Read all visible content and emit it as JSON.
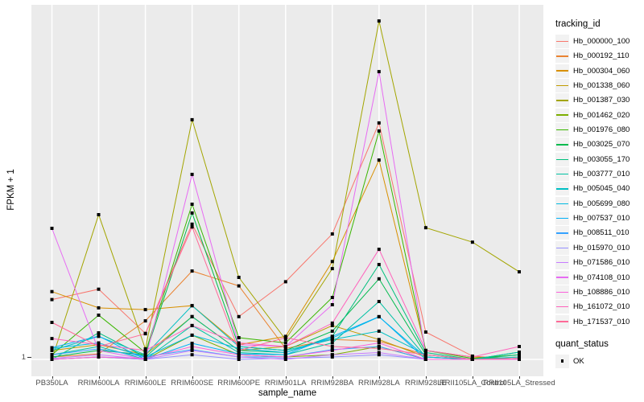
{
  "figure": {
    "background": "#FFFFFF",
    "panel_background": "#EBEBEB",
    "grid_color": "#FFFFFF",
    "axis_text_color": "#4D4D4D",
    "point_color": "#000000"
  },
  "axes": {
    "x_title": "sample_name",
    "y_title": "FPKM + 1",
    "y_tick_label": "1"
  },
  "legend": {
    "tracking_title": "tracking_id",
    "quant_title": "quant_status",
    "quant_items": [
      {
        "label": "OK"
      }
    ]
  },
  "chart_data": {
    "type": "line",
    "title": "",
    "xlabel": "sample_name",
    "ylabel": "FPKM + 1",
    "y_scale": "log10",
    "y_ticks": [
      {
        "value": 1,
        "label": "1"
      }
    ],
    "ylim_log10": [
      -0.05,
      3.15
    ],
    "grid": "vertical major gridlines per sample, horizontal gridline at y=1",
    "legend_position": "right",
    "marker": "filled-square",
    "quant_status": "OK",
    "categories": [
      "PB350LA",
      "RRIM600LA",
      "RRIM600LE",
      "RRIM600SE",
      "RRIM600PE",
      "RRIM901LA",
      "RRIM928BA",
      "RRIM928LA",
      "RRIM928LE",
      "RRII105LA_Control",
      "RRII105LA_Stressed"
    ],
    "series": [
      {
        "name": "Hb_000000_100",
        "color": "#F8766D",
        "values": [
          3.4,
          4.2,
          1.7,
          15.9,
          2.4,
          4.9,
          13.0,
          126,
          1.75,
          1.07,
          1.0
        ]
      },
      {
        "name": "Hb_000192_110",
        "color": "#EA8331",
        "values": [
          1.05,
          1.12,
          2.2,
          6.1,
          4.5,
          1.25,
          1.5,
          1.45,
          1.1,
          1.0,
          1.05
        ]
      },
      {
        "name": "Hb_000304_060",
        "color": "#D89000",
        "values": [
          4.0,
          2.87,
          2.77,
          3.0,
          1.35,
          1.6,
          7.4,
          59,
          1.2,
          1.05,
          1.0
        ]
      },
      {
        "name": "Hb_001338_060",
        "color": "#C09B00",
        "values": [
          1.2,
          1.35,
          1.1,
          2.4,
          1.2,
          1.3,
          2.0,
          1.5,
          1.05,
          1.0,
          1.0
        ]
      },
      {
        "name": "Hb_001387_030",
        "color": "#A3A500",
        "values": [
          1.0,
          19.3,
          1.24,
          134.6,
          5.35,
          1.5,
          6.4,
          1015,
          14.8,
          11.0,
          6.0
        ]
      },
      {
        "name": "Hb_001462_020",
        "color": "#7CAE00",
        "values": [
          1.0,
          1.05,
          1.0,
          1.64,
          1.1,
          1.05,
          1.1,
          1.3,
          1.0,
          1.0,
          1.02
        ]
      },
      {
        "name": "Hb_001976_080",
        "color": "#39B600",
        "values": [
          1.1,
          2.47,
          1.15,
          23.9,
          1.56,
          1.4,
          3.55,
          107,
          1.2,
          1.02,
          1.1
        ]
      },
      {
        "name": "Hb_003025_070",
        "color": "#00BB4E",
        "values": [
          1.05,
          1.2,
          1.1,
          20.0,
          1.3,
          1.2,
          1.78,
          5.2,
          1.1,
          1.0,
          1.16
        ]
      },
      {
        "name": "Hb_003055_170",
        "color": "#00BF7D",
        "values": [
          1.0,
          1.72,
          1.05,
          2.4,
          1.2,
          1.15,
          1.6,
          6.96,
          1.15,
          1.0,
          1.1
        ]
      },
      {
        "name": "Hb_003777_010",
        "color": "#00C1A3",
        "values": [
          1.1,
          1.3,
          1.0,
          2.0,
          1.15,
          1.1,
          1.4,
          3.27,
          1.05,
          1.0,
          1.16
        ]
      },
      {
        "name": "Hb_005045_040",
        "color": "#00BFC4",
        "values": [
          1.2,
          1.6,
          1.1,
          3.0,
          1.3,
          1.2,
          1.5,
          1.78,
          1.1,
          1.0,
          1.05
        ]
      },
      {
        "name": "Hb_005699_080",
        "color": "#00BAE0",
        "values": [
          1.25,
          1.4,
          1.05,
          1.64,
          1.25,
          1.15,
          1.55,
          2.39,
          1.05,
          1.0,
          1.02
        ]
      },
      {
        "name": "Hb_007537_010",
        "color": "#00B0F6",
        "values": [
          1.27,
          1.61,
          1.0,
          1.39,
          1.12,
          1.1,
          1.6,
          2.4,
          1.0,
          1.0,
          1.0
        ]
      },
      {
        "name": "Hb_008511_010",
        "color": "#35A2FF",
        "values": [
          1.1,
          1.24,
          1.05,
          1.22,
          1.05,
          1.05,
          1.22,
          1.3,
          1.0,
          1.0,
          1.0
        ]
      },
      {
        "name": "Hb_015970_010",
        "color": "#9590FF",
        "values": [
          1.0,
          1.05,
          1.0,
          1.1,
          1.0,
          1.02,
          1.05,
          1.1,
          1.0,
          1.0,
          1.0
        ]
      },
      {
        "name": "Hb_071586_010",
        "color": "#C77CFF",
        "values": [
          1.02,
          1.1,
          1.0,
          1.2,
          1.05,
          1.0,
          1.1,
          1.15,
          1.0,
          1.0,
          1.0
        ]
      },
      {
        "name": "Hb_074108_010",
        "color": "#E76BF3",
        "values": [
          14.6,
          1.2,
          1.0,
          44,
          1.35,
          1.3,
          3.06,
          360,
          1.1,
          1.0,
          1.0
        ]
      },
      {
        "name": "Hb_108886_010",
        "color": "#FA62DB",
        "values": [
          1.0,
          1.05,
          1.02,
          1.3,
          1.1,
          1.05,
          1.2,
          1.4,
          1.0,
          1.0,
          1.0
        ]
      },
      {
        "name": "Hb_161072_010",
        "color": "#FF62BC",
        "values": [
          1.53,
          1.35,
          1.2,
          2.0,
          1.4,
          1.3,
          2.1,
          9.5,
          1.2,
          1.05,
          1.3
        ]
      },
      {
        "name": "Hb_171537_010",
        "color": "#FF6A98",
        "values": [
          2.13,
          1.3,
          1.69,
          15.0,
          1.2,
          1.56,
          1.3,
          1.25,
          1.1,
          1.0,
          1.02
        ]
      }
    ]
  }
}
